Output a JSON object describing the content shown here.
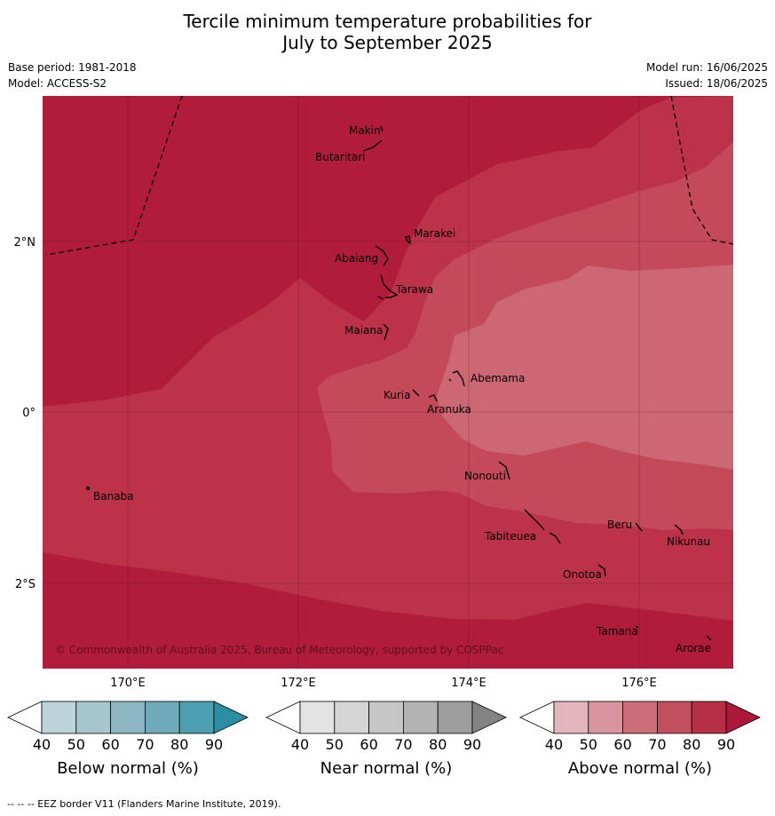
{
  "title_line1": "Tercile minimum temperature probabilities for",
  "title_line2": "July to September 2025",
  "base_period": "Base period: 1981-2018",
  "model": "Model: ACCESS-S2",
  "model_run": "Model run: 16/06/2025",
  "issued": "Issued: 18/06/2025",
  "lat_ticks": [
    "2°N",
    "0°",
    "2°S"
  ],
  "lon_ticks": [
    "170°E",
    "172°E",
    "174°E",
    "176°E"
  ],
  "places": {
    "makin": "Makin",
    "butaritari": "Butaritari",
    "marakei": "Marakei",
    "abaiang": "Abaiang",
    "tarawa": "Tarawa",
    "maiana": "Maiana",
    "abemama": "Abemama",
    "kuria": "Kuria",
    "aranuka": "Aranuka",
    "nonouti": "Nonouti",
    "banaba": "Banaba",
    "beru": "Beru",
    "nikunau": "Nikunau",
    "tabiteuea": "Tabiteuea",
    "onotoa": "Onotoa",
    "tamana": "Tamana",
    "arorae": "Arorae"
  },
  "copyright": "© Commonwealth of Australia 2025, Bureau of Meteorology, supported by COSPPac",
  "colorbars": {
    "below": {
      "label": "Below normal (%)",
      "ticks": [
        "40",
        "50",
        "60",
        "70",
        "80",
        "90"
      ],
      "colors": [
        "#ffffff",
        "#bcd3da",
        "#a5c6cf",
        "#8bb8c4",
        "#6eaab9",
        "#4ca0b0",
        "#2b8fa3"
      ]
    },
    "near": {
      "label": "Near normal (%)",
      "ticks": [
        "40",
        "50",
        "60",
        "70",
        "80",
        "90"
      ],
      "colors": [
        "#ffffff",
        "#e3e3e3",
        "#d5d5d5",
        "#c6c6c6",
        "#b3b3b3",
        "#9e9e9e",
        "#838383"
      ]
    },
    "above": {
      "label": "Above normal (%)",
      "ticks": [
        "40",
        "50",
        "60",
        "70",
        "80",
        "90"
      ],
      "colors": [
        "#ffffff",
        "#e2b6bc",
        "#d8959f",
        "#cc6d79",
        "#c24f5d",
        "#b72f44",
        "#ad1739"
      ]
    }
  },
  "footer": "--  --  -- EEZ border V11 (Flanders Marine Institute, 2019)."
}
